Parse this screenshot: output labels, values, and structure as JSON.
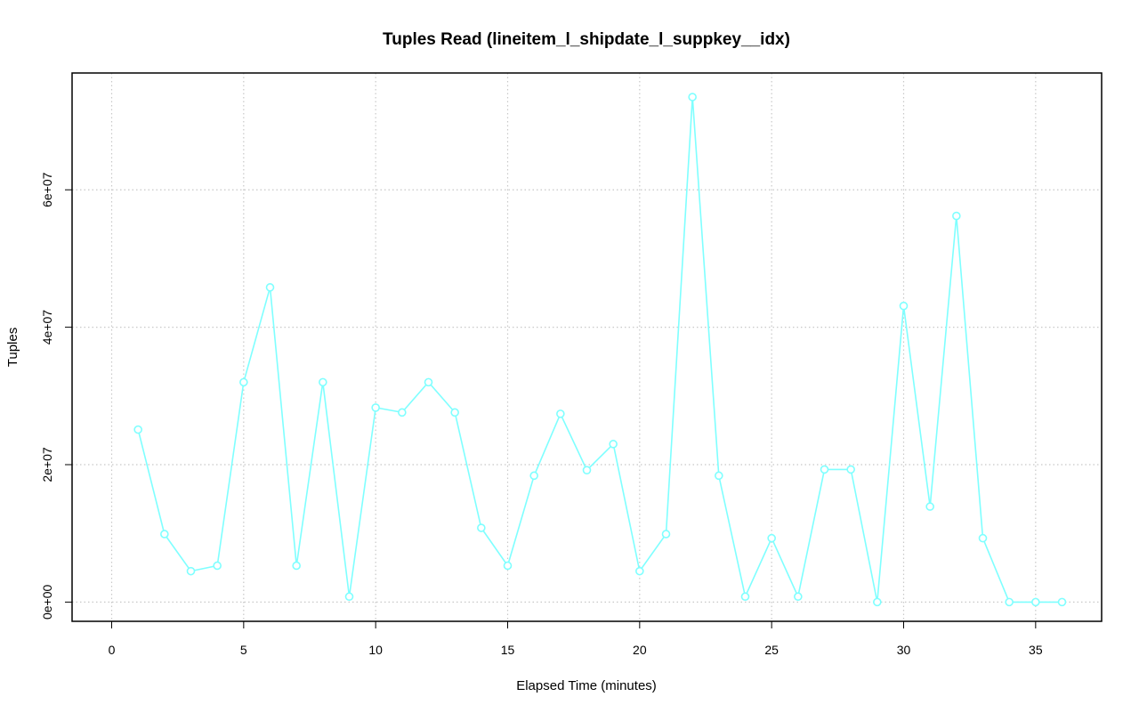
{
  "chart_data": {
    "type": "line",
    "title": "Tuples Read (lineitem_l_shipdate_l_suppkey__idx)",
    "xlabel": "Elapsed Time (minutes)",
    "ylabel": "Tuples",
    "xlim": [
      -1.5,
      37.5
    ],
    "ylim": [
      -2800000,
      77000000
    ],
    "x_ticks": [
      0,
      5,
      10,
      15,
      20,
      25,
      30,
      35
    ],
    "x_tick_labels": [
      "0",
      "5",
      "10",
      "15",
      "20",
      "25",
      "30",
      "35"
    ],
    "y_ticks": [
      0,
      20000000,
      40000000,
      60000000
    ],
    "y_tick_labels": [
      "0e+00",
      "2e+07",
      "4e+07",
      "6e+07"
    ],
    "grid": true,
    "series": [
      {
        "color": "#7fffff",
        "x": [
          1,
          2,
          3,
          4,
          5,
          6,
          7,
          8,
          9,
          10,
          11,
          12,
          13,
          14,
          15,
          16,
          17,
          18,
          19,
          20,
          21,
          22,
          23,
          24,
          25,
          26,
          27,
          28,
          29,
          30,
          31,
          32,
          33,
          34,
          35,
          36
        ],
        "y": [
          25100000,
          9900000,
          4500000,
          5300000,
          32000000,
          45800000,
          5300000,
          32000000,
          800000,
          28300000,
          27600000,
          32000000,
          27600000,
          10800000,
          5300000,
          18400000,
          27400000,
          19200000,
          23000000,
          4500000,
          9900000,
          73500000,
          18400000,
          800000,
          9300000,
          800000,
          19300000,
          19300000,
          0,
          43100000,
          13900000,
          56200000,
          9300000,
          0,
          0,
          0
        ]
      }
    ]
  }
}
